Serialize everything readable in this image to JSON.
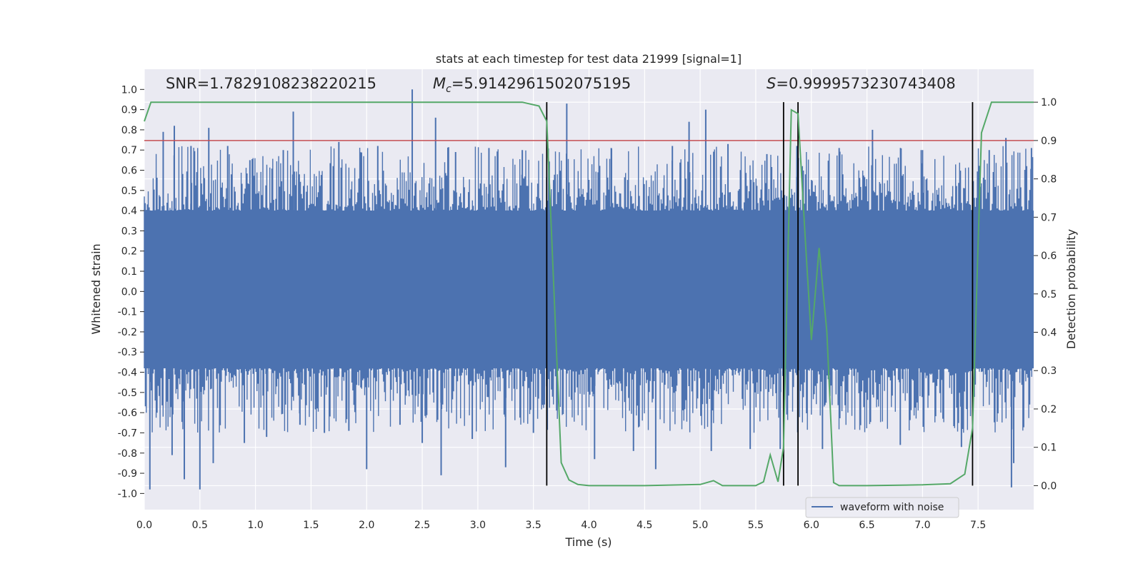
{
  "chart_data": {
    "type": "line",
    "title": "stats at each timestep for test data 21999 [signal=1]",
    "xlabel": "Time (s)",
    "ylabel": "Whitened strain",
    "y2label": "Detection probability",
    "xlim": [
      0.0,
      8.0
    ],
    "ylim": [
      -1.08,
      1.1
    ],
    "y2lim": [
      -0.0625,
      1.0859
    ],
    "xticks": [
      "0.0",
      "0.5",
      "1.0",
      "1.5",
      "2.0",
      "2.5",
      "3.0",
      "3.5",
      "4.0",
      "4.5",
      "5.0",
      "5.5",
      "6.0",
      "6.5",
      "7.0",
      "7.5"
    ],
    "yticks": [
      "1.0",
      "0.9",
      "0.8",
      "0.7",
      "0.6",
      "0.5",
      "0.4",
      "0.3",
      "0.2",
      "0.1",
      "0.0",
      "-0.1",
      "-0.2",
      "-0.3",
      "-0.4",
      "-0.5",
      "-0.6",
      "-0.7",
      "-0.8",
      "-0.9",
      "-1.0"
    ],
    "y2ticks": [
      "1.0",
      "0.9",
      "0.8",
      "0.7",
      "0.6",
      "0.5",
      "0.4",
      "0.3",
      "0.2",
      "0.1",
      "0.0"
    ],
    "annotations": {
      "snr": "SNR=1.7829108238220215",
      "mc_symbol": "M",
      "mc_sub": "c",
      "mc_value": "=5.9142961502075195",
      "s_symbol": "S",
      "s_value": "=0.9999573230743408"
    },
    "threshold": {
      "value": 0.9,
      "axis": "right",
      "color": "#c44e52"
    },
    "vlines": [
      3.62,
      5.75,
      5.88,
      7.45
    ],
    "legend": {
      "label": "waveform with noise",
      "location": "lower right"
    },
    "series": [
      {
        "name": "waveform with noise",
        "axis": "left",
        "color": "#4c72b0",
        "band_max": 0.4,
        "band_min": -0.38,
        "peak_spikes": [
          {
            "x": 0.05,
            "y": -0.98
          },
          {
            "x": 0.17,
            "y": 0.79
          },
          {
            "x": 0.25,
            "y": -0.81
          },
          {
            "x": 0.27,
            "y": 0.82
          },
          {
            "x": 0.36,
            "y": -0.93
          },
          {
            "x": 0.42,
            "y": 0.72
          },
          {
            "x": 0.5,
            "y": -0.98
          },
          {
            "x": 0.58,
            "y": 0.81
          },
          {
            "x": 0.62,
            "y": -0.85
          },
          {
            "x": 0.75,
            "y": 0.72
          },
          {
            "x": 0.9,
            "y": -0.75
          },
          {
            "x": 0.95,
            "y": 0.65
          },
          {
            "x": 1.1,
            "y": -0.72
          },
          {
            "x": 1.25,
            "y": 0.7
          },
          {
            "x": 1.34,
            "y": 0.89
          },
          {
            "x": 1.4,
            "y": -0.66
          },
          {
            "x": 1.62,
            "y": -0.7
          },
          {
            "x": 1.75,
            "y": 0.74
          },
          {
            "x": 1.84,
            "y": -0.69
          },
          {
            "x": 2.0,
            "y": -0.88
          },
          {
            "x": 2.1,
            "y": 0.72
          },
          {
            "x": 2.3,
            "y": -0.66
          },
          {
            "x": 2.41,
            "y": 1.0
          },
          {
            "x": 2.5,
            "y": -0.75
          },
          {
            "x": 2.62,
            "y": 0.86
          },
          {
            "x": 2.67,
            "y": -0.91
          },
          {
            "x": 2.8,
            "y": 0.69
          },
          {
            "x": 2.95,
            "y": -0.73
          },
          {
            "x": 3.1,
            "y": 0.71
          },
          {
            "x": 3.25,
            "y": -0.87
          },
          {
            "x": 3.4,
            "y": 0.7
          },
          {
            "x": 3.5,
            "y": -0.7
          },
          {
            "x": 3.8,
            "y": 0.93
          },
          {
            "x": 4.05,
            "y": -0.83
          },
          {
            "x": 4.2,
            "y": 0.71
          },
          {
            "x": 4.4,
            "y": -0.79
          },
          {
            "x": 4.6,
            "y": -0.88
          },
          {
            "x": 4.75,
            "y": 0.72
          },
          {
            "x": 4.9,
            "y": 0.84
          },
          {
            "x": 5.05,
            "y": 0.9
          },
          {
            "x": 5.1,
            "y": -0.79
          },
          {
            "x": 5.25,
            "y": 0.73
          },
          {
            "x": 5.45,
            "y": -0.78
          },
          {
            "x": 5.6,
            "y": 0.68
          },
          {
            "x": 5.72,
            "y": -0.78
          },
          {
            "x": 5.87,
            "y": 0.72
          },
          {
            "x": 6.1,
            "y": -0.78
          },
          {
            "x": 6.25,
            "y": 0.71
          },
          {
            "x": 6.55,
            "y": 0.8
          },
          {
            "x": 6.8,
            "y": -0.76
          },
          {
            "x": 7.0,
            "y": 0.7
          },
          {
            "x": 7.35,
            "y": -0.77
          },
          {
            "x": 7.6,
            "y": 0.7
          },
          {
            "x": 7.75,
            "y": 0.76
          },
          {
            "x": 7.8,
            "y": -0.97
          },
          {
            "x": 7.82,
            "y": -0.85
          },
          {
            "x": 7.98,
            "y": 0.71
          }
        ]
      },
      {
        "name": "detection probability",
        "axis": "right",
        "color": "#55a868",
        "x": [
          0.0,
          0.06,
          0.5,
          1.0,
          1.5,
          2.0,
          2.5,
          3.0,
          3.4,
          3.55,
          3.62,
          3.75,
          3.82,
          3.9,
          4.0,
          4.5,
          5.0,
          5.12,
          5.2,
          5.4,
          5.5,
          5.57,
          5.63,
          5.7,
          5.75,
          5.82,
          5.88,
          5.95,
          6.0,
          6.07,
          6.14,
          6.2,
          6.25,
          6.5,
          7.0,
          7.25,
          7.38,
          7.45,
          7.53,
          7.62,
          7.7,
          8.0
        ],
        "y": [
          0.95,
          1.0,
          1.0,
          1.0,
          1.0,
          1.0,
          1.0,
          1.0,
          1.0,
          0.99,
          0.95,
          0.06,
          0.015,
          0.003,
          0.0,
          0.0,
          0.003,
          0.013,
          0.0,
          0.0,
          0.0,
          0.01,
          0.08,
          0.01,
          0.1,
          0.98,
          0.97,
          0.62,
          0.38,
          0.62,
          0.4,
          0.008,
          0.0,
          0.0,
          0.002,
          0.005,
          0.03,
          0.15,
          0.92,
          1.0,
          1.0,
          1.0
        ]
      }
    ]
  }
}
